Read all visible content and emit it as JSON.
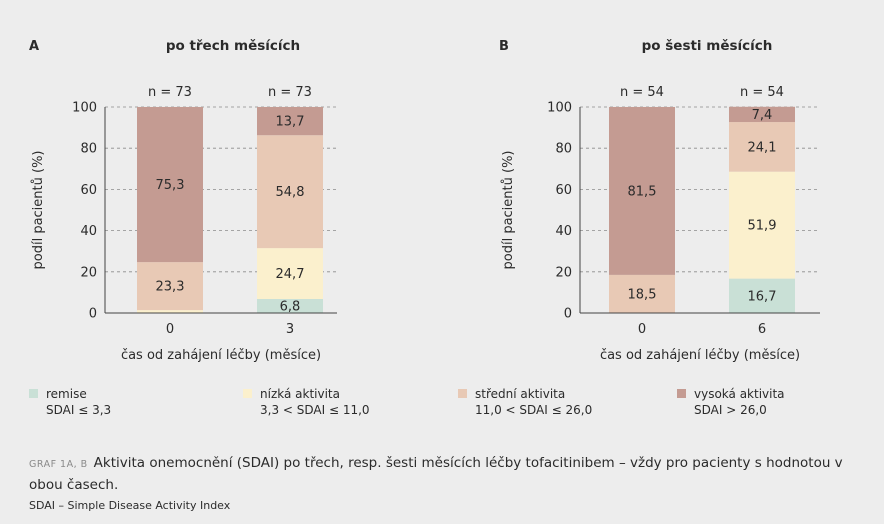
{
  "chart_data": [
    {
      "type": "bar",
      "panel": "A",
      "title": "po třech měsících",
      "categories": [
        "0",
        "3"
      ],
      "n_labels": [
        "n = 73",
        "n = 73"
      ],
      "xlabel": "čas od zahájení léčby (měsíce)",
      "ylabel": "podíl pacientů (%)",
      "ylim": [
        0,
        100
      ],
      "yticks": [
        0,
        20,
        40,
        60,
        80,
        100
      ],
      "stacked": true,
      "grid": "dashed horizontal",
      "series": [
        {
          "name": "remise",
          "values": [
            0,
            6.8
          ],
          "labels": [
            "",
            "6,8"
          ]
        },
        {
          "name": "nízká aktivita",
          "values": [
            1.4,
            24.7
          ],
          "labels": [
            "",
            "24,7"
          ]
        },
        {
          "name": "střední aktivita",
          "values": [
            23.3,
            54.8
          ],
          "labels": [
            "23,3",
            "54,8"
          ]
        },
        {
          "name": "vysoká aktivita",
          "values": [
            75.3,
            13.7
          ],
          "labels": [
            "75,3",
            "13,7"
          ]
        }
      ]
    },
    {
      "type": "bar",
      "panel": "B",
      "title": "po šesti měsících",
      "categories": [
        "0",
        "6"
      ],
      "n_labels": [
        "n = 54",
        "n = 54"
      ],
      "xlabel": "čas od zahájení léčby (měsíce)",
      "ylabel": "podíl pacientů (%)",
      "ylim": [
        0,
        100
      ],
      "yticks": [
        0,
        20,
        40,
        60,
        80,
        100
      ],
      "stacked": true,
      "grid": "dashed horizontal",
      "series": [
        {
          "name": "remise",
          "values": [
            0,
            16.7
          ],
          "labels": [
            "",
            "16,7"
          ]
        },
        {
          "name": "nízká aktivita",
          "values": [
            0,
            51.9
          ],
          "labels": [
            "",
            "51,9"
          ]
        },
        {
          "name": "střední aktivita",
          "values": [
            18.5,
            24.1
          ],
          "labels": [
            "18,5",
            "24,1"
          ]
        },
        {
          "name": "vysoká aktivita",
          "values": [
            81.5,
            7.4
          ],
          "labels": [
            "81,5",
            "7,4"
          ]
        }
      ]
    }
  ],
  "colors": {
    "remise": "#c9e0d6",
    "nízká aktivita": "#fbf0cd",
    "střední aktivita": "#e8c9b5",
    "vysoká aktivita": "#c49b92",
    "grid": "#8c8c8c",
    "background": "#ededed"
  },
  "legend": [
    {
      "name": "remise",
      "desc": "SDAI ≤ 3,3"
    },
    {
      "name": "nízká aktivita",
      "desc": "3,3 < SDAI ≤ 11,0"
    },
    {
      "name": "střední aktivita",
      "desc": "11,0 < SDAI ≤ 26,0"
    },
    {
      "name": "vysoká aktivita",
      "desc": "SDAI > 26,0"
    }
  ],
  "caption": {
    "tag": "GRAF 1A, B",
    "text": "Aktivita onemocnění (SDAI) po třech, resp. šesti měsících léčby tofacitinibem – vždy pro pacienty s hodnotou v obou časech."
  },
  "footnote": "SDAI – Simple Disease Activity Index"
}
